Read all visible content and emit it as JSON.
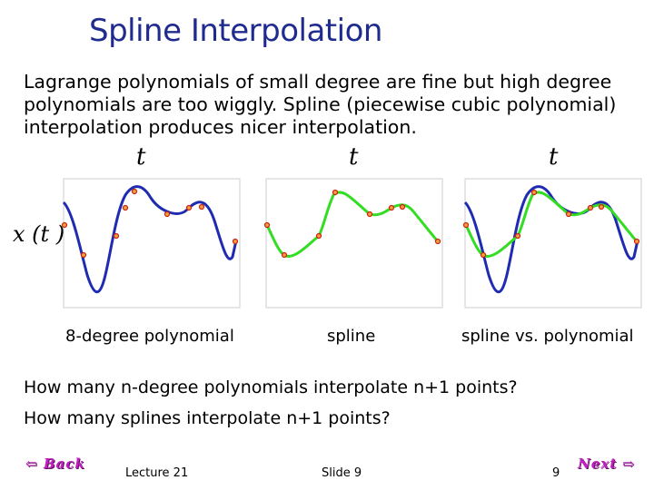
{
  "slide": {
    "title": "Spline Interpolation",
    "body_lines": [
      "Lagrange polynomials of small degree are fine but high degree",
      "polynomials are too wiggly. Spline (piecewise cubic polynomial)",
      "interpolation produces nicer interpolation."
    ],
    "t_label": "t",
    "x_label": "x (t )",
    "captions": [
      "8-degree polynomial",
      "spline",
      "spline vs. polynomial"
    ],
    "questions": [
      "How many n-degree polynomials interpolate n+1 points?",
      "How many splines interpolate n+1 points?"
    ],
    "footer": {
      "lecture": "Lecture 21",
      "slide": "Slide 9",
      "page": "9"
    },
    "nav": {
      "back": "Back",
      "next": "Next"
    },
    "colors": {
      "title": "#1f2b8f",
      "polynomial": "#1f2bb0",
      "spline": "#33dd22",
      "points": "#dd3322",
      "nav": "#c020c0"
    },
    "nav_icons": {
      "back": "left-arrow-icon",
      "next": "right-arrow-icon"
    }
  }
}
